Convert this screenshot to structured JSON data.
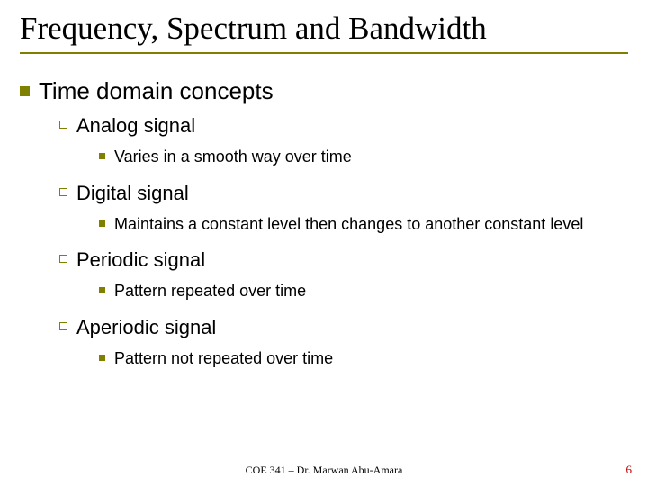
{
  "colors": {
    "accent": "#808000",
    "pagenum": "#c00000",
    "underline": "#808000",
    "text": "#000000",
    "background": "#ffffff"
  },
  "title": "Frequency, Spectrum and Bandwidth",
  "content": {
    "heading": "Time domain concepts",
    "items": [
      {
        "label": "Analog signal",
        "detail": "Varies in a smooth way over time"
      },
      {
        "label": "Digital signal",
        "detail": "Maintains a constant level then changes to another constant level"
      },
      {
        "label": "Periodic signal",
        "detail": "Pattern repeated over time"
      },
      {
        "label": "Aperiodic signal",
        "detail": "Pattern not repeated over time"
      }
    ]
  },
  "footer": "COE 341 – Dr. Marwan Abu-Amara",
  "page_number": "6"
}
